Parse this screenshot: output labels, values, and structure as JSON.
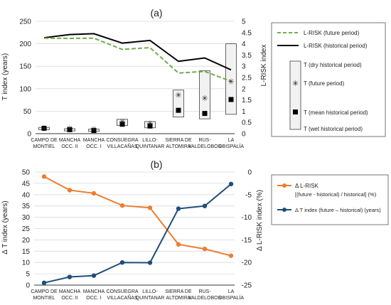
{
  "chart_data": [
    {
      "panel_label": "(a)",
      "type": "line",
      "categories": [
        [
          "CAMPO DE",
          "MONTIEL"
        ],
        [
          "MANCHA",
          "OCC. II"
        ],
        [
          "MANCHA",
          "OCC. I"
        ],
        [
          "CONSUEGRA",
          "VILLACAÑAS"
        ],
        [
          "LILLO-",
          "QUINTANAR"
        ],
        [
          "SIERRA DE",
          "ALTOMIRA"
        ],
        [
          "RUS-",
          "VALDELOBOS"
        ],
        [
          "LA",
          "OBISPALÍA"
        ]
      ],
      "ylabel_left": "T index (years)",
      "ylabel_right": "L-RISK index",
      "ylim_left": [
        0,
        250
      ],
      "yticks_left": [
        "0",
        "50",
        "100",
        "150",
        "200",
        "250"
      ],
      "ylim_right": [
        0,
        5
      ],
      "yticks_right": [
        "0",
        "0.5",
        "1",
        "1.5",
        "2",
        "2.5",
        "3",
        "3.5",
        "4",
        "4.5",
        "5"
      ],
      "lrisk_future": [
        4.25,
        4.24,
        4.25,
        3.75,
        3.83,
        2.7,
        2.77,
        2.33
      ],
      "lrisk_historical": [
        4.27,
        4.41,
        4.45,
        4.03,
        4.15,
        3.22,
        3.37,
        2.84
      ],
      "T_dry_historical": [
        14,
        11,
        10,
        32,
        27,
        97,
        140,
        200
      ],
      "T_wet_historical": [
        9,
        6,
        5,
        18,
        13,
        37,
        33,
        43
      ],
      "T_future": [
        12,
        12,
        10,
        27,
        23,
        86,
        79,
        116
      ],
      "T_mean_historical": [
        12,
        9,
        7,
        21,
        17,
        52,
        45,
        76
      ],
      "legend": {
        "lrisk_future": "L-RISK (future period)",
        "lrisk_historical": "L-RISK (historical period)",
        "T_dry": "T (dry historical period)",
        "T_future": "T (future period)",
        "T_mean": "T (mean historical period)",
        "T_wet": "T (wet historical period)"
      },
      "colors": {
        "future": "#70ad47",
        "historical": "#000000",
        "box_fill": "#f2f2f2",
        "box_stroke": "#404040"
      }
    },
    {
      "panel_label": "(b)",
      "type": "line",
      "categories": [
        [
          "CAMPO DE",
          "MONTIEL"
        ],
        [
          "MANCHA",
          "OCC. II"
        ],
        [
          "MANCHA",
          "OCC. I"
        ],
        [
          "CONSUEGRA",
          "VILLACAÑAS"
        ],
        [
          "LILLO-",
          "QUINTANAR"
        ],
        [
          "SIERRA DE",
          "ALTOMIRA"
        ],
        [
          "RUS-",
          "VALDELOBOS"
        ],
        [
          "LA",
          "OBISPALÍA"
        ]
      ],
      "ylabel_left": "Δ T index (years)",
      "ylabel_right": "Δ L-RISK index (%)",
      "ylim_left": [
        0,
        50
      ],
      "yticks_left": [
        "0",
        "5",
        "10",
        "15",
        "20",
        "25",
        "30",
        "35",
        "40",
        "45",
        "50"
      ],
      "ylim_right": [
        -25,
        0
      ],
      "yticks_right": [
        "-25",
        "-20",
        "-15",
        "-10",
        "-5",
        "0"
      ],
      "delta_lrisk": [
        -1,
        -4,
        -4.7,
        -7.4,
        -7.9,
        -16,
        -17,
        -18.5
      ],
      "delta_T": [
        1,
        3.6,
        4.2,
        10,
        9.9,
        33.8,
        35,
        44.7
      ],
      "legend": {
        "delta_lrisk_line1": "Δ L-RISK",
        "delta_lrisk_line2": "[(future - historical) / historical] (%)",
        "delta_T": "Δ T index (future – historical) (years)"
      },
      "colors": {
        "delta_lrisk": "#ed7d31",
        "delta_T": "#1f4e79"
      }
    }
  ]
}
